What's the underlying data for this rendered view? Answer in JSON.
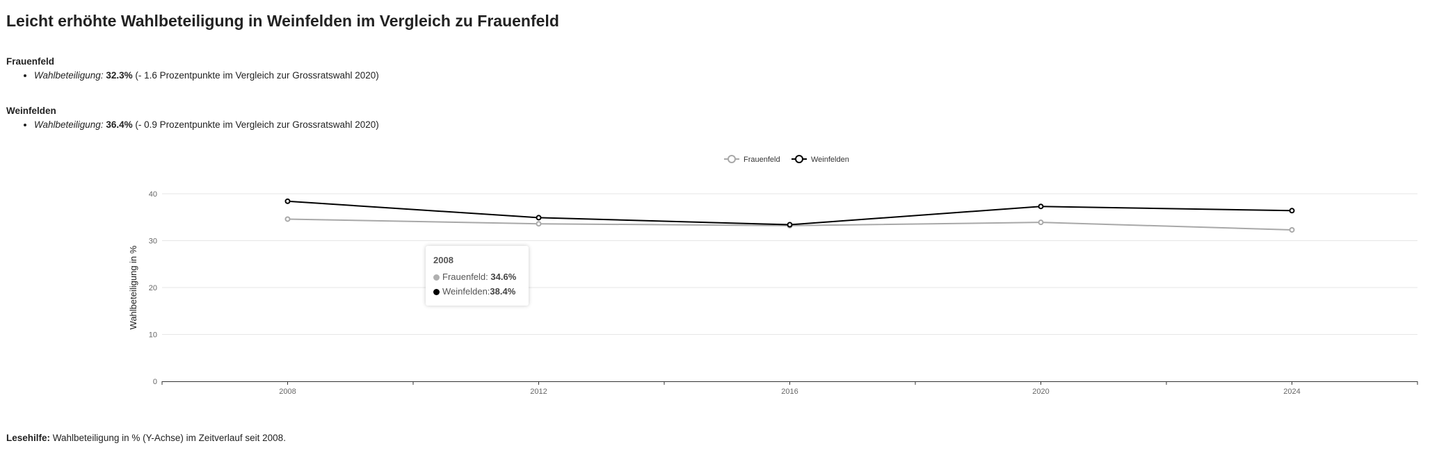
{
  "title": "Leicht erhöhte Wahlbeteiligung in Weinfelden im Vergleich zu Frauenfeld",
  "sections": [
    {
      "name": "Frauenfeld",
      "item_label": "Wahlbeteiligung:",
      "item_value": "32.3%",
      "item_note": " (- 1.6 Prozentpunkte im Vergleich zur Grossratswahl 2020)"
    },
    {
      "name": "Weinfelden",
      "item_label": "Wahlbeteiligung:",
      "item_value": "36.4%",
      "item_note": " (- 0.9 Prozentpunkte im Vergleich zur Grossratswahl 2020)"
    }
  ],
  "tooltip": {
    "title": "2008",
    "rows": [
      {
        "label": "Frauenfeld:",
        "value": "34.6%",
        "color": "#b0b0b0"
      },
      {
        "label": "Weinfelden:",
        "value": "38.4%",
        "color": "#000000"
      }
    ]
  },
  "footer": {
    "label": "Lesehilfe:",
    "text": " Wahlbeteiligung in % (Y-Achse) im Zeitverlauf seit 2008."
  },
  "chart_data": {
    "type": "line",
    "x": [
      2008,
      2012,
      2016,
      2020,
      2024
    ],
    "series": [
      {
        "name": "Frauenfeld",
        "color": "#a8a8a8",
        "values": [
          34.6,
          33.6,
          33.2,
          33.9,
          32.3
        ]
      },
      {
        "name": "Weinfelden",
        "color": "#000000",
        "values": [
          38.4,
          34.9,
          33.4,
          37.3,
          36.4
        ]
      }
    ],
    "ylabel": "Wahlbeteiligung in %",
    "xlabel": "",
    "ylim": [
      0,
      40
    ],
    "yticks": [
      0,
      10,
      20,
      30,
      40
    ],
    "xlim": [
      2006,
      2026
    ],
    "grid": true,
    "legend_position": "top-center"
  }
}
